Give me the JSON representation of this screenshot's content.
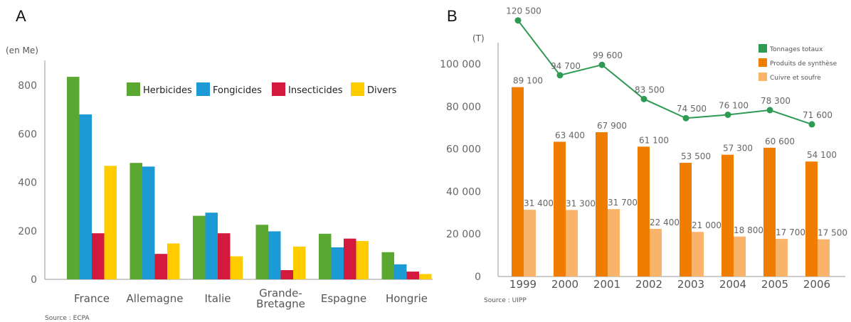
{
  "panels": {
    "a_letter": "A",
    "b_letter": "B"
  },
  "chart_data": [
    {
      "type": "bar",
      "unit_label": "(en Me)",
      "source": "Source : ECPA",
      "categories": [
        "France",
        "Allemagne",
        "Italie",
        "Grande-\nBretagne",
        "Espagne",
        "Hongrie"
      ],
      "series": [
        {
          "name": "Herbicides",
          "color": "#5aa832",
          "values": [
            835,
            480,
            262,
            225,
            188,
            112
          ]
        },
        {
          "name": "Fongicides",
          "color": "#1c9ad6",
          "values": [
            680,
            465,
            275,
            198,
            132,
            62
          ]
        },
        {
          "name": "Insecticides",
          "color": "#d41a3c",
          "values": [
            190,
            105,
            190,
            38,
            168,
            32
          ]
        },
        {
          "name": "Divers",
          "color": "#ffcc00",
          "values": [
            468,
            148,
            95,
            135,
            158,
            22
          ]
        }
      ],
      "ylim": [
        0,
        900
      ],
      "yticks": [
        0,
        200,
        400,
        600,
        800
      ],
      "xlabel": "",
      "ylabel": "",
      "legend_position": "top-right"
    },
    {
      "type": "bar",
      "unit_label": "(T)",
      "source": "Source : UIPP",
      "categories": [
        "1999",
        "2000",
        "2001",
        "2002",
        "2003",
        "2004",
        "2005",
        "2006"
      ],
      "ylim": [
        0,
        110000
      ],
      "yticks": [
        "0",
        "20 000",
        "40 000",
        "60 000",
        "80 000",
        "100 000"
      ],
      "ytick_values": [
        0,
        20000,
        40000,
        60000,
        80000,
        100000
      ],
      "series": [
        {
          "name": "Tonnages totaux",
          "type": "line",
          "color": "#2e9a53",
          "values": [
            120500,
            94700,
            99600,
            83500,
            74500,
            76100,
            78300,
            71600
          ],
          "labels": [
            "120 500",
            "94 700",
            "99 600",
            "83 500",
            "74 500",
            "76 100",
            "78 300",
            "71 600"
          ]
        },
        {
          "name": "Produits de synthèse",
          "type": "bar",
          "color": "#f07c00",
          "values": [
            89100,
            63400,
            67900,
            61100,
            53500,
            57300,
            60600,
            54100
          ],
          "labels": [
            "89 100",
            "63 400",
            "67 900",
            "61 100",
            "53 500",
            "57 300",
            "60 600",
            "54 100"
          ]
        },
        {
          "name": "Cuivre et soufre",
          "type": "bar",
          "color": "#f9b36b",
          "values": [
            31400,
            31300,
            31700,
            22400,
            21000,
            18800,
            17700,
            17500
          ],
          "labels": [
            "31 400",
            "31 300",
            "31 700",
            "22 400",
            "21 000",
            "18 800",
            "17 700",
            "17 500"
          ]
        }
      ],
      "xlabel": "",
      "ylabel": "",
      "legend_position": "top-right"
    }
  ]
}
